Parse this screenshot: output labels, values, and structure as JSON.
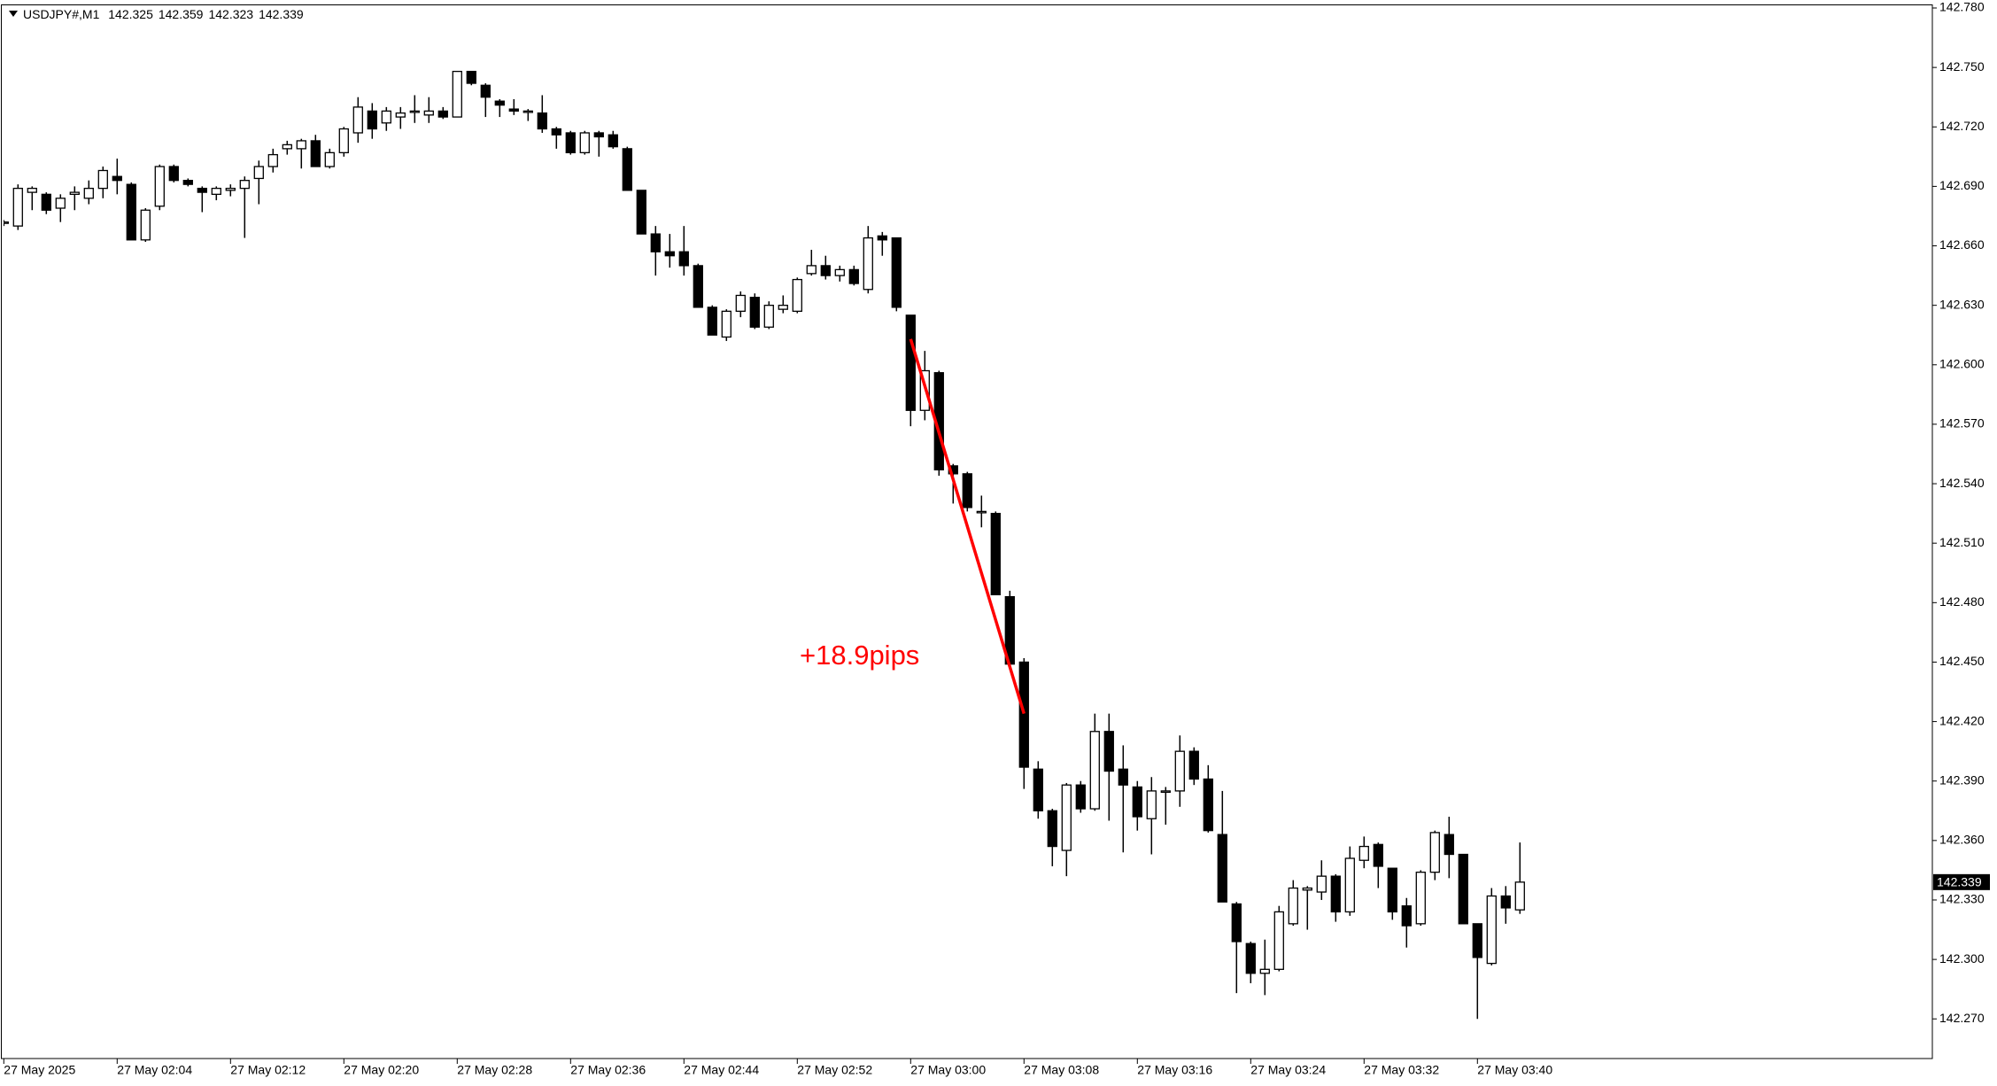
{
  "chart_data": {
    "type": "candlestick",
    "symbol": "USDJPY#,M1",
    "categories": [
      "27 May 2025",
      null,
      null,
      null,
      null,
      null,
      null,
      null,
      "27 May 02:04",
      null,
      null,
      null,
      null,
      null,
      null,
      null,
      "27 May 02:12",
      null,
      null,
      null,
      null,
      null,
      null,
      null,
      "27 May 02:20",
      null,
      null,
      null,
      null,
      null,
      null,
      null,
      "27 May 02:28",
      null,
      null,
      null,
      null,
      null,
      null,
      null,
      "27 May 02:36",
      null,
      null,
      null,
      null,
      null,
      null,
      null,
      "27 May 02:44",
      null,
      null,
      null,
      null,
      null,
      null,
      null,
      "27 May 02:52",
      null,
      null,
      null,
      null,
      null,
      null,
      null,
      "27 May 03:00",
      null,
      null,
      null,
      null,
      null,
      null,
      null,
      "27 May 03:08",
      null,
      null,
      null,
      null,
      null,
      null,
      null,
      "27 May 03:16",
      null,
      null,
      null,
      null,
      null,
      null,
      null,
      "27 May 03:24",
      null,
      null,
      null,
      null,
      null,
      null,
      null,
      "27 May 03:32",
      null,
      null,
      null,
      null,
      null,
      null,
      null,
      "27 May 03:40",
      null,
      null,
      null
    ],
    "open": [
      142.672,
      142.67,
      142.687,
      142.686,
      142.679,
      142.686,
      142.684,
      142.689,
      142.695,
      142.691,
      142.663,
      142.68,
      142.7,
      142.693,
      142.689,
      142.686,
      142.688,
      142.689,
      142.694,
      142.7,
      142.709,
      142.709,
      142.713,
      142.7,
      142.707,
      142.717,
      142.728,
      142.722,
      142.725,
      142.728,
      142.726,
      142.728,
      142.725,
      142.748,
      142.741,
      142.733,
      142.729,
      142.728,
      142.727,
      142.719,
      142.717,
      142.707,
      142.717,
      142.716,
      142.709,
      142.688,
      142.666,
      142.657,
      142.657,
      142.65,
      142.629,
      142.614,
      142.627,
      142.634,
      142.619,
      142.628,
      142.627,
      142.646,
      142.65,
      142.645,
      142.648,
      142.638,
      142.665,
      142.664,
      142.625,
      142.577,
      142.596,
      142.549,
      142.545,
      142.526,
      142.525,
      142.483,
      142.45,
      142.396,
      142.375,
      142.355,
      142.388,
      142.376,
      142.415,
      142.396,
      142.387,
      142.371,
      142.385,
      142.385,
      142.405,
      142.391,
      142.363,
      142.328,
      142.308,
      142.293,
      142.295,
      142.318,
      142.335,
      142.334,
      142.342,
      142.324,
      142.35,
      142.358,
      142.346,
      142.327,
      142.318,
      142.344,
      142.363,
      142.353,
      142.318,
      142.298,
      142.332,
      142.325
    ],
    "high": [
      142.673,
      142.691,
      142.69,
      142.687,
      142.686,
      142.69,
      142.693,
      142.7,
      142.704,
      142.692,
      142.679,
      142.701,
      142.701,
      142.694,
      142.69,
      142.69,
      142.691,
      142.695,
      142.703,
      142.709,
      142.713,
      142.714,
      142.716,
      142.709,
      142.72,
      142.735,
      142.732,
      142.73,
      142.73,
      142.736,
      142.735,
      142.73,
      142.748,
      142.748,
      142.742,
      142.734,
      142.734,
      142.729,
      142.736,
      142.72,
      142.718,
      142.718,
      142.718,
      142.718,
      142.71,
      142.688,
      142.67,
      142.666,
      142.67,
      142.651,
      142.63,
      142.628,
      142.637,
      142.636,
      142.632,
      142.635,
      142.644,
      142.658,
      142.655,
      142.65,
      142.65,
      142.67,
      142.667,
      142.664,
      142.625,
      142.607,
      142.597,
      142.55,
      142.546,
      142.534,
      142.526,
      142.486,
      142.452,
      142.4,
      142.376,
      142.389,
      142.39,
      142.424,
      142.424,
      142.408,
      142.39,
      142.392,
      142.387,
      142.413,
      142.407,
      142.398,
      142.385,
      142.329,
      142.309,
      142.31,
      142.327,
      142.34,
      142.337,
      142.35,
      142.343,
      142.357,
      142.362,
      142.359,
      142.346,
      142.331,
      142.345,
      142.365,
      142.372,
      142.353,
      142.318,
      142.336,
      142.337,
      142.359
    ],
    "low": [
      142.67,
      142.668,
      142.678,
      142.676,
      142.672,
      142.678,
      142.681,
      142.684,
      142.686,
      142.663,
      142.662,
      142.678,
      142.692,
      142.69,
      142.677,
      142.683,
      142.685,
      142.664,
      142.681,
      142.697,
      142.706,
      142.699,
      142.7,
      142.699,
      142.705,
      142.712,
      142.714,
      142.718,
      142.719,
      142.722,
      142.722,
      142.724,
      142.725,
      142.741,
      142.725,
      142.725,
      142.726,
      142.723,
      142.717,
      142.709,
      142.706,
      142.706,
      142.705,
      142.709,
      142.688,
      142.666,
      142.645,
      142.649,
      142.645,
      142.629,
      142.615,
      142.612,
      142.624,
      142.618,
      142.618,
      142.626,
      142.626,
      142.645,
      142.643,
      142.642,
      142.64,
      142.636,
      142.655,
      142.627,
      142.569,
      142.572,
      142.544,
      142.53,
      142.526,
      142.518,
      142.484,
      142.447,
      142.386,
      142.371,
      142.347,
      142.342,
      142.374,
      142.375,
      142.37,
      142.354,
      142.365,
      142.353,
      142.368,
      142.377,
      142.388,
      142.364,
      142.329,
      142.283,
      142.288,
      142.282,
      142.294,
      142.317,
      142.315,
      142.33,
      142.319,
      142.322,
      142.346,
      142.336,
      142.32,
      142.306,
      142.317,
      142.34,
      142.341,
      142.318,
      142.27,
      142.297,
      142.318,
      142.323
    ],
    "close": [
      142.672,
      142.689,
      142.689,
      142.678,
      142.684,
      142.687,
      142.689,
      142.698,
      142.693,
      142.663,
      142.678,
      142.7,
      142.693,
      142.691,
      142.687,
      142.689,
      142.689,
      142.693,
      142.7,
      142.706,
      142.711,
      142.713,
      142.7,
      142.707,
      142.719,
      142.73,
      142.719,
      142.728,
      142.727,
      142.728,
      142.728,
      142.725,
      142.748,
      142.742,
      142.735,
      142.731,
      142.728,
      142.728,
      142.719,
      142.716,
      142.707,
      142.717,
      142.715,
      142.71,
      142.688,
      142.666,
      142.657,
      142.655,
      142.65,
      142.629,
      142.615,
      142.627,
      142.635,
      142.619,
      142.63,
      142.63,
      142.643,
      142.65,
      142.645,
      142.648,
      142.641,
      142.664,
      142.663,
      142.629,
      142.577,
      142.597,
      142.547,
      142.545,
      142.528,
      142.526,
      142.484,
      142.449,
      142.397,
      142.375,
      142.357,
      142.388,
      142.376,
      142.415,
      142.395,
      142.388,
      142.372,
      142.385,
      142.385,
      142.405,
      142.391,
      142.365,
      142.329,
      142.309,
      142.293,
      142.295,
      142.324,
      142.336,
      142.336,
      142.342,
      142.324,
      142.351,
      142.357,
      142.347,
      142.324,
      142.317,
      142.344,
      142.364,
      142.353,
      142.318,
      142.301,
      142.332,
      142.326,
      142.339
    ],
    "up_color": "#ffffff",
    "down_color": "#000000",
    "ylim": [
      142.25,
      142.78
    ],
    "yticks": [
      {
        "value": 142.27,
        "label": "142.270"
      },
      {
        "value": 142.3,
        "label": "142.300"
      },
      {
        "value": 142.33,
        "label": "142.330"
      },
      {
        "value": 142.36,
        "label": "142.360"
      },
      {
        "value": 142.39,
        "label": "142.390"
      },
      {
        "value": 142.42,
        "label": "142.420"
      },
      {
        "value": 142.45,
        "label": "142.450"
      },
      {
        "value": 142.48,
        "label": "142.480"
      },
      {
        "value": 142.51,
        "label": "142.510"
      },
      {
        "value": 142.54,
        "label": "142.540"
      },
      {
        "value": 142.57,
        "label": "142.570"
      },
      {
        "value": 142.6,
        "label": "142.600"
      },
      {
        "value": 142.63,
        "label": "142.630"
      },
      {
        "value": 142.66,
        "label": "142.660"
      },
      {
        "value": 142.69,
        "label": "142.690"
      },
      {
        "value": 142.72,
        "label": "142.720"
      },
      {
        "value": 142.75,
        "label": "142.750"
      },
      {
        "value": 142.78,
        "label": "142.780"
      }
    ],
    "annotation": "+18.9pips",
    "trendline": {
      "from": [
        64,
        142.613
      ],
      "to": [
        72,
        142.424
      ],
      "color": "#ff0000"
    }
  }
}
